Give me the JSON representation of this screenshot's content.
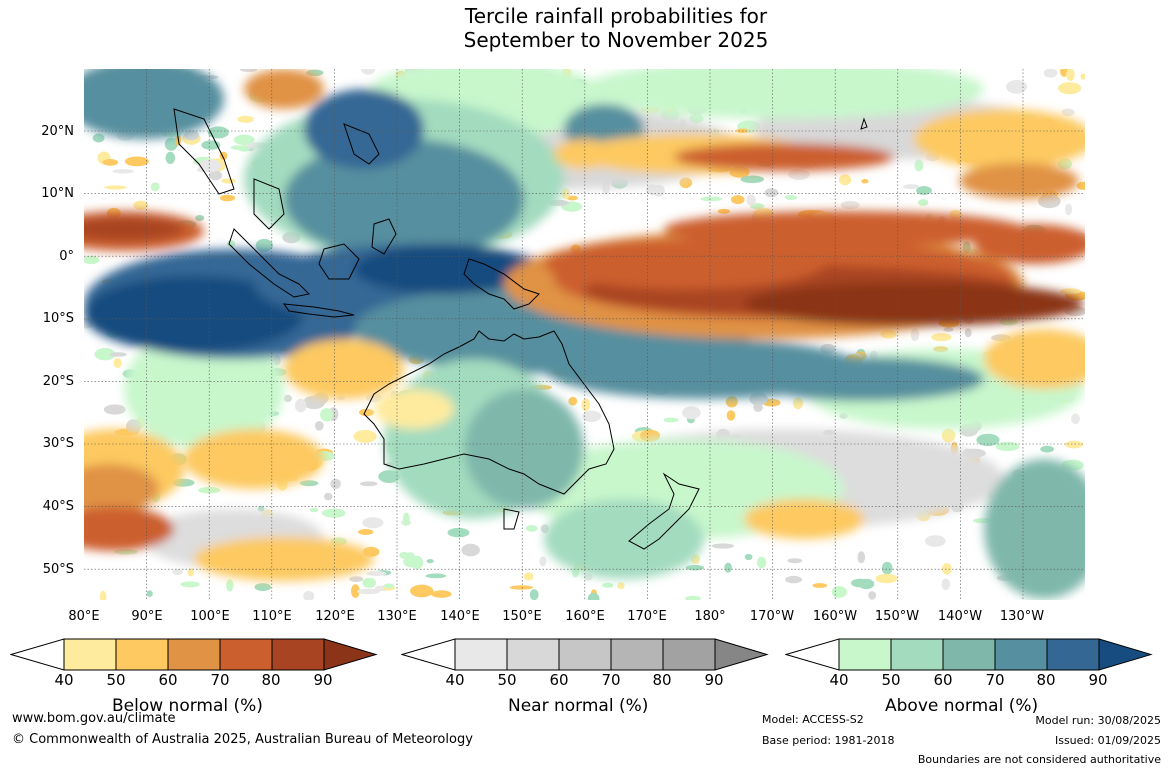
{
  "title": {
    "line1": "Tercile rainfall probabilities for",
    "line2": "September to November 2025"
  },
  "map": {
    "lat_labels": [
      "20°N",
      "10°N",
      "0°",
      "10°S",
      "20°S",
      "30°S",
      "40°S",
      "50°S"
    ],
    "lon_labels": [
      "80°E",
      "90°E",
      "100°E",
      "110°E",
      "120°E",
      "130°E",
      "140°E",
      "150°E",
      "160°E",
      "170°E",
      "180°",
      "170°W",
      "160°W",
      "150°W",
      "140°W",
      "130°W"
    ],
    "lon_range": [
      "80°E",
      "240°E"
    ],
    "lat_range": [
      "30°N",
      "55°S"
    ],
    "grid": "dotted"
  },
  "legends": {
    "below": {
      "title": "Below normal (%)",
      "ticks": [
        "40",
        "50",
        "60",
        "70",
        "80",
        "90"
      ],
      "colors": [
        "#ffffff",
        "#feeb9e",
        "#fdc960",
        "#e09245",
        "#cc5f2e",
        "#a94422",
        "#8b3418"
      ]
    },
    "near": {
      "title": "Near normal (%)",
      "ticks": [
        "40",
        "50",
        "60",
        "70",
        "80",
        "90"
      ],
      "colors": [
        "#ffffff",
        "#e8e8e8",
        "#d8d8d8",
        "#c6c6c6",
        "#b5b5b5",
        "#a2a2a2",
        "#868686"
      ]
    },
    "above": {
      "title": "Above normal (%)",
      "ticks": [
        "40",
        "50",
        "60",
        "70",
        "80",
        "90"
      ],
      "colors": [
        "#ffffff",
        "#c8f7cc",
        "#a3dbbf",
        "#7fb8ab",
        "#568f9f",
        "#356795",
        "#164c7f"
      ]
    }
  },
  "footer": {
    "url": "www.bom.gov.au/climate",
    "copyright": "© Commonwealth of Australia 2025, Australian Bureau of Meteorology",
    "model": "Model: ACCESS-S2",
    "base_period": "Base period: 1981-2018",
    "model_run": "Model run: 30/08/2025",
    "issued": "Issued: 01/09/2025",
    "disclaimer": "Boundaries are not considered authoritative"
  }
}
